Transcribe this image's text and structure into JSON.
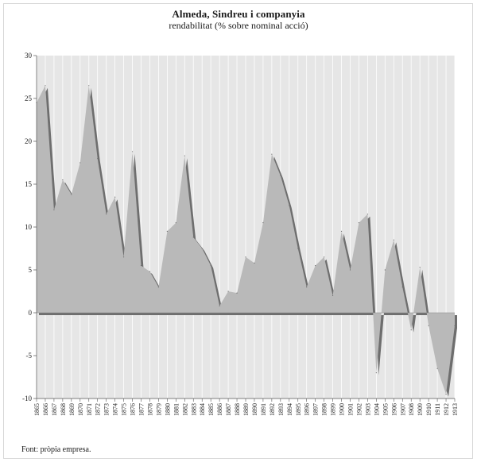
{
  "header": {
    "title": "Almeda, Sindreu i companyia",
    "subtitle": "rendabilitat (% sobre nominal acció)"
  },
  "footer": {
    "source": "Font: pròpia empresa."
  },
  "colors": {
    "area_fill": "#b9b9b9",
    "shadow": "#6e6e6e",
    "plot_background": "#e6e6e6",
    "gridline": "#ffffff"
  },
  "chart_data": {
    "type": "area",
    "title": "Almeda, Sindreu i companyia",
    "subtitle": "rendabilitat (% sobre nominal acció)",
    "xlabel": "",
    "ylabel": "",
    "ylim": [
      -10,
      30
    ],
    "yticks": [
      -10,
      -5,
      0,
      5,
      10,
      15,
      20,
      25,
      30
    ],
    "grid": "vertical",
    "x": [
      "1865",
      "1866",
      "1867",
      "1868",
      "1869",
      "1870",
      "1871",
      "1872",
      "1873",
      "1874",
      "1875",
      "1876",
      "1877",
      "1878",
      "1879",
      "1880",
      "1881",
      "1882",
      "1883",
      "1884",
      "1885",
      "1886",
      "1887",
      "1888",
      "1889",
      "1890",
      "1891",
      "1892",
      "1893",
      "1894",
      "1895",
      "1896",
      "1897",
      "1898",
      "1899",
      "1900",
      "1901",
      "1902",
      "1903",
      "1904",
      "1905",
      "1906",
      "1907",
      "1908",
      "1909",
      "1910",
      "1911",
      "1912",
      "1913"
    ],
    "series": [
      {
        "values": [
          24.5,
          26.5,
          12,
          15.5,
          13.8,
          17.5,
          26.5,
          18,
          11.5,
          13.5,
          6.5,
          18.8,
          5.5,
          4.8,
          3,
          9.5,
          10.5,
          18.3,
          8.8,
          7.5,
          5.5,
          0.8,
          2.5,
          2.3,
          6.5,
          5.8,
          10.5,
          18.5,
          16,
          12.5,
          7.5,
          3,
          5.5,
          6.5,
          2,
          9.5,
          5,
          10.5,
          11.5,
          -7,
          5,
          8.5,
          3,
          -2,
          5.3,
          -1.5,
          -6.5,
          -9.5,
          -1.5
        ]
      }
    ]
  }
}
